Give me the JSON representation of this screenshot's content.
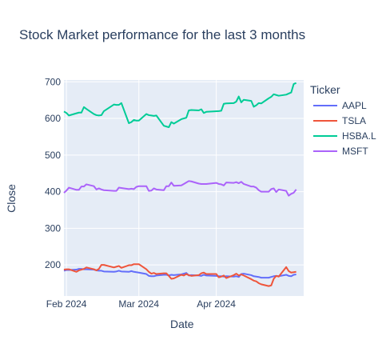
{
  "chart_data": {
    "type": "line",
    "title": "Stock Market performance for the last 3 months",
    "xlabel": "Date",
    "ylabel": "Close",
    "xlim": [
      "2024-01-31",
      "2024-05-06"
    ],
    "ylim": [
      115,
      705
    ],
    "x_ticks": [
      {
        "date": "2024-02-01",
        "label": "Feb 2024"
      },
      {
        "date": "2024-03-01",
        "label": "Mar 2024"
      },
      {
        "date": "2024-04-01",
        "label": "Apr 2024"
      }
    ],
    "y_ticks": [
      200,
      300,
      400,
      500,
      600,
      700
    ],
    "grid": true,
    "legend": {
      "title": "Ticker",
      "position": "right"
    },
    "series": [
      {
        "name": "AAPL",
        "color": "#636efa",
        "points": [
          [
            "2024-01-31",
            184
          ],
          [
            "2024-02-01",
            186
          ],
          [
            "2024-02-02",
            186
          ],
          [
            "2024-02-05",
            187
          ],
          [
            "2024-02-06",
            189
          ],
          [
            "2024-02-07",
            189
          ],
          [
            "2024-02-08",
            188
          ],
          [
            "2024-02-09",
            188
          ],
          [
            "2024-02-12",
            187
          ],
          [
            "2024-02-13",
            185
          ],
          [
            "2024-02-14",
            184
          ],
          [
            "2024-02-15",
            184
          ],
          [
            "2024-02-16",
            182
          ],
          [
            "2024-02-20",
            181
          ],
          [
            "2024-02-21",
            182
          ],
          [
            "2024-02-22",
            184
          ],
          [
            "2024-02-23",
            182
          ],
          [
            "2024-02-26",
            181
          ],
          [
            "2024-02-27",
            183
          ],
          [
            "2024-02-28",
            181
          ],
          [
            "2024-02-29",
            180
          ],
          [
            "2024-03-01",
            179
          ],
          [
            "2024-03-04",
            175
          ],
          [
            "2024-03-05",
            170
          ],
          [
            "2024-03-06",
            169
          ],
          [
            "2024-03-07",
            169
          ],
          [
            "2024-03-08",
            171
          ],
          [
            "2024-03-11",
            173
          ],
          [
            "2024-03-12",
            173
          ],
          [
            "2024-03-13",
            171
          ],
          [
            "2024-03-14",
            173
          ],
          [
            "2024-03-15",
            172
          ],
          [
            "2024-03-18",
            174
          ],
          [
            "2024-03-19",
            176
          ],
          [
            "2024-03-20",
            178
          ],
          [
            "2024-03-21",
            171
          ],
          [
            "2024-03-22",
            172
          ],
          [
            "2024-03-25",
            171
          ],
          [
            "2024-03-26",
            170
          ],
          [
            "2024-03-27",
            173
          ],
          [
            "2024-03-28",
            171
          ],
          [
            "2024-04-01",
            170
          ],
          [
            "2024-04-02",
            169
          ],
          [
            "2024-04-03",
            169
          ],
          [
            "2024-04-04",
            168
          ],
          [
            "2024-04-05",
            169
          ],
          [
            "2024-04-08",
            168
          ],
          [
            "2024-04-09",
            169
          ],
          [
            "2024-04-10",
            167
          ],
          [
            "2024-04-11",
            175
          ],
          [
            "2024-04-12",
            176
          ],
          [
            "2024-04-15",
            172
          ],
          [
            "2024-04-16",
            169
          ],
          [
            "2024-04-17",
            168
          ],
          [
            "2024-04-18",
            167
          ],
          [
            "2024-04-19",
            165
          ],
          [
            "2024-04-22",
            165
          ],
          [
            "2024-04-23",
            167
          ],
          [
            "2024-04-24",
            169
          ],
          [
            "2024-04-25",
            170
          ],
          [
            "2024-04-26",
            169
          ],
          [
            "2024-04-29",
            173
          ],
          [
            "2024-04-30",
            170
          ],
          [
            "2024-05-01",
            169
          ],
          [
            "2024-05-02",
            173
          ],
          [
            "2024-05-03",
            174
          ]
        ]
      },
      {
        "name": "TSLA",
        "color": "#ef553b",
        "points": [
          [
            "2024-01-31",
            187
          ],
          [
            "2024-02-01",
            188
          ],
          [
            "2024-02-02",
            188
          ],
          [
            "2024-02-05",
            181
          ],
          [
            "2024-02-06",
            185
          ],
          [
            "2024-02-07",
            187
          ],
          [
            "2024-02-08",
            189
          ],
          [
            "2024-02-09",
            193
          ],
          [
            "2024-02-12",
            188
          ],
          [
            "2024-02-13",
            185
          ],
          [
            "2024-02-14",
            189
          ],
          [
            "2024-02-15",
            200
          ],
          [
            "2024-02-16",
            200
          ],
          [
            "2024-02-20",
            193
          ],
          [
            "2024-02-21",
            195
          ],
          [
            "2024-02-22",
            197
          ],
          [
            "2024-02-23",
            192
          ],
          [
            "2024-02-26",
            199
          ],
          [
            "2024-02-27",
            199
          ],
          [
            "2024-02-28",
            202
          ],
          [
            "2024-02-29",
            202
          ],
          [
            "2024-03-01",
            202
          ],
          [
            "2024-03-04",
            188
          ],
          [
            "2024-03-05",
            181
          ],
          [
            "2024-03-06",
            176
          ],
          [
            "2024-03-07",
            178
          ],
          [
            "2024-03-08",
            175
          ],
          [
            "2024-03-11",
            177
          ],
          [
            "2024-03-12",
            177
          ],
          [
            "2024-03-13",
            170
          ],
          [
            "2024-03-14",
            162
          ],
          [
            "2024-03-15",
            163
          ],
          [
            "2024-03-18",
            173
          ],
          [
            "2024-03-19",
            171
          ],
          [
            "2024-03-20",
            175
          ],
          [
            "2024-03-21",
            172
          ],
          [
            "2024-03-22",
            170
          ],
          [
            "2024-03-25",
            172
          ],
          [
            "2024-03-26",
            177
          ],
          [
            "2024-03-27",
            179
          ],
          [
            "2024-03-28",
            175
          ],
          [
            "2024-04-01",
            175
          ],
          [
            "2024-04-02",
            166
          ],
          [
            "2024-04-03",
            168
          ],
          [
            "2024-04-04",
            171
          ],
          [
            "2024-04-05",
            164
          ],
          [
            "2024-04-08",
            172
          ],
          [
            "2024-04-09",
            176
          ],
          [
            "2024-04-10",
            171
          ],
          [
            "2024-04-11",
            174
          ],
          [
            "2024-04-12",
            171
          ],
          [
            "2024-04-15",
            161
          ],
          [
            "2024-04-16",
            157
          ],
          [
            "2024-04-17",
            155
          ],
          [
            "2024-04-18",
            150
          ],
          [
            "2024-04-19",
            147
          ],
          [
            "2024-04-22",
            142
          ],
          [
            "2024-04-23",
            144
          ],
          [
            "2024-04-24",
            162
          ],
          [
            "2024-04-25",
            170
          ],
          [
            "2024-04-26",
            168
          ],
          [
            "2024-04-29",
            194
          ],
          [
            "2024-04-30",
            183
          ],
          [
            "2024-05-01",
            179
          ],
          [
            "2024-05-02",
            180
          ],
          [
            "2024-05-03",
            181
          ]
        ]
      },
      {
        "name": "HSBA.L",
        "color": "#00cc96",
        "points": [
          [
            "2024-01-31",
            619
          ],
          [
            "2024-02-01",
            615
          ],
          [
            "2024-02-02",
            608
          ],
          [
            "2024-02-05",
            614
          ],
          [
            "2024-02-06",
            616
          ],
          [
            "2024-02-07",
            616
          ],
          [
            "2024-02-08",
            631
          ],
          [
            "2024-02-09",
            626
          ],
          [
            "2024-02-12",
            612
          ],
          [
            "2024-02-13",
            609
          ],
          [
            "2024-02-14",
            608
          ],
          [
            "2024-02-15",
            609
          ],
          [
            "2024-02-16",
            620
          ],
          [
            "2024-02-20",
            638
          ],
          [
            "2024-02-21",
            637
          ],
          [
            "2024-02-22",
            637
          ],
          [
            "2024-02-23",
            642
          ],
          [
            "2024-02-26",
            587
          ],
          [
            "2024-02-27",
            590
          ],
          [
            "2024-02-28",
            596
          ],
          [
            "2024-02-29",
            594
          ],
          [
            "2024-03-01",
            594
          ],
          [
            "2024-03-04",
            612
          ],
          [
            "2024-03-05",
            609
          ],
          [
            "2024-03-06",
            608
          ],
          [
            "2024-03-07",
            607
          ],
          [
            "2024-03-08",
            608
          ],
          [
            "2024-03-11",
            580
          ],
          [
            "2024-03-12",
            578
          ],
          [
            "2024-03-13",
            576
          ],
          [
            "2024-03-14",
            590
          ],
          [
            "2024-03-15",
            586
          ],
          [
            "2024-03-18",
            598
          ],
          [
            "2024-03-19",
            600
          ],
          [
            "2024-03-20",
            602
          ],
          [
            "2024-03-21",
            622
          ],
          [
            "2024-03-22",
            623
          ],
          [
            "2024-03-25",
            622
          ],
          [
            "2024-03-26",
            625
          ],
          [
            "2024-03-27",
            615
          ],
          [
            "2024-03-28",
            618
          ],
          [
            "2024-04-02",
            620
          ],
          [
            "2024-04-03",
            621
          ],
          [
            "2024-04-04",
            640
          ],
          [
            "2024-04-05",
            641
          ],
          [
            "2024-04-08",
            642
          ],
          [
            "2024-04-09",
            646
          ],
          [
            "2024-04-10",
            660
          ],
          [
            "2024-04-11",
            644
          ],
          [
            "2024-04-12",
            651
          ],
          [
            "2024-04-15",
            648
          ],
          [
            "2024-04-16",
            632
          ],
          [
            "2024-04-17",
            636
          ],
          [
            "2024-04-18",
            642
          ],
          [
            "2024-04-19",
            641
          ],
          [
            "2024-04-22",
            655
          ],
          [
            "2024-04-23",
            659
          ],
          [
            "2024-04-24",
            666
          ],
          [
            "2024-04-25",
            664
          ],
          [
            "2024-04-26",
            662
          ],
          [
            "2024-04-29",
            665
          ],
          [
            "2024-04-30",
            668
          ],
          [
            "2024-05-01",
            671
          ],
          [
            "2024-05-02",
            694
          ],
          [
            "2024-05-03",
            697
          ]
        ]
      },
      {
        "name": "MSFT",
        "color": "#ab63fa",
        "points": [
          [
            "2024-01-31",
            397
          ],
          [
            "2024-02-01",
            403
          ],
          [
            "2024-02-02",
            411
          ],
          [
            "2024-02-05",
            405
          ],
          [
            "2024-02-06",
            405
          ],
          [
            "2024-02-07",
            414
          ],
          [
            "2024-02-08",
            414
          ],
          [
            "2024-02-09",
            420
          ],
          [
            "2024-02-12",
            415
          ],
          [
            "2024-02-13",
            406
          ],
          [
            "2024-02-14",
            409
          ],
          [
            "2024-02-15",
            406
          ],
          [
            "2024-02-16",
            404
          ],
          [
            "2024-02-20",
            402
          ],
          [
            "2024-02-21",
            402
          ],
          [
            "2024-02-22",
            411
          ],
          [
            "2024-02-23",
            410
          ],
          [
            "2024-02-26",
            407
          ],
          [
            "2024-02-27",
            408
          ],
          [
            "2024-02-28",
            407
          ],
          [
            "2024-02-29",
            413
          ],
          [
            "2024-03-01",
            415
          ],
          [
            "2024-03-04",
            415
          ],
          [
            "2024-03-05",
            402
          ],
          [
            "2024-03-06",
            403
          ],
          [
            "2024-03-07",
            409
          ],
          [
            "2024-03-08",
            406
          ],
          [
            "2024-03-11",
            404
          ],
          [
            "2024-03-12",
            415
          ],
          [
            "2024-03-13",
            415
          ],
          [
            "2024-03-14",
            425
          ],
          [
            "2024-03-15",
            416
          ],
          [
            "2024-03-18",
            417
          ],
          [
            "2024-03-19",
            421
          ],
          [
            "2024-03-20",
            425
          ],
          [
            "2024-03-21",
            429
          ],
          [
            "2024-03-22",
            428
          ],
          [
            "2024-03-25",
            422
          ],
          [
            "2024-03-26",
            421
          ],
          [
            "2024-03-27",
            421
          ],
          [
            "2024-03-28",
            421
          ],
          [
            "2024-04-01",
            424
          ],
          [
            "2024-04-02",
            421
          ],
          [
            "2024-04-03",
            420
          ],
          [
            "2024-04-04",
            417
          ],
          [
            "2024-04-05",
            425
          ],
          [
            "2024-04-08",
            424
          ],
          [
            "2024-04-09",
            426
          ],
          [
            "2024-04-10",
            423
          ],
          [
            "2024-04-11",
            427
          ],
          [
            "2024-04-12",
            421
          ],
          [
            "2024-04-15",
            414
          ],
          [
            "2024-04-16",
            414
          ],
          [
            "2024-04-17",
            411
          ],
          [
            "2024-04-18",
            404
          ],
          [
            "2024-04-19",
            400
          ],
          [
            "2024-04-22",
            400
          ],
          [
            "2024-04-23",
            407
          ],
          [
            "2024-04-24",
            409
          ],
          [
            "2024-04-25",
            399
          ],
          [
            "2024-04-26",
            406
          ],
          [
            "2024-04-29",
            402
          ],
          [
            "2024-04-30",
            389
          ],
          [
            "2024-05-01",
            394
          ],
          [
            "2024-05-02",
            397
          ],
          [
            "2024-05-03",
            406
          ]
        ]
      }
    ]
  }
}
